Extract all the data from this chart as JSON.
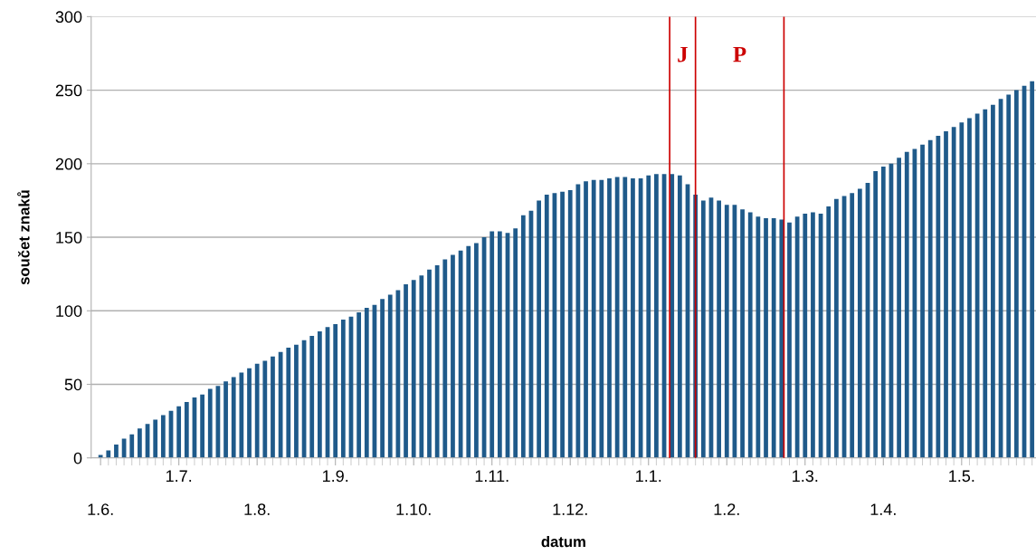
{
  "chart_data": {
    "type": "bar",
    "xlabel": "datum",
    "ylabel": "součet znaků",
    "color": "#1f5a8a",
    "grid": "y",
    "legend": false,
    "categories": [
      "1.6.",
      null,
      null,
      null,
      null,
      null,
      null,
      null,
      null,
      null,
      "1.7.",
      null,
      null,
      null,
      null,
      null,
      null,
      null,
      null,
      null,
      "1.8.",
      null,
      null,
      null,
      null,
      null,
      null,
      null,
      null,
      null,
      "1.9.",
      null,
      null,
      null,
      null,
      null,
      null,
      null,
      null,
      null,
      "1.10.",
      null,
      null,
      null,
      null,
      null,
      null,
      null,
      null,
      null,
      "1.11.",
      null,
      null,
      null,
      null,
      null,
      null,
      null,
      null,
      null,
      "1.12.",
      null,
      null,
      null,
      null,
      null,
      null,
      null,
      null,
      null,
      "1.1.",
      null,
      null,
      null,
      null,
      null,
      null,
      null,
      null,
      null,
      "1.2.",
      null,
      null,
      null,
      null,
      null,
      null,
      null,
      null,
      null,
      "1.3.",
      null,
      null,
      null,
      null,
      null,
      null,
      null,
      null,
      null,
      "1.4.",
      null,
      null,
      null,
      null,
      null,
      null,
      null,
      null,
      null,
      "1.5.",
      null,
      null,
      null,
      null,
      null,
      null,
      null,
      null,
      null
    ],
    "values": [
      2,
      5,
      9,
      13,
      16,
      20,
      23,
      26,
      29,
      32,
      35,
      38,
      41,
      43,
      47,
      49,
      52,
      55,
      58,
      61,
      64,
      66,
      69,
      72,
      75,
      77,
      80,
      83,
      86,
      89,
      91,
      94,
      96,
      99,
      102,
      104,
      108,
      111,
      114,
      118,
      121,
      124,
      128,
      131,
      135,
      138,
      141,
      144,
      146,
      150,
      154,
      154,
      153,
      156,
      165,
      168,
      175,
      179,
      180,
      181,
      182,
      186,
      188,
      189,
      189,
      190,
      191,
      191,
      190,
      190,
      192,
      193,
      193,
      193,
      192,
      186,
      179,
      175,
      177,
      175,
      172,
      172,
      169,
      167,
      164,
      163,
      163,
      162,
      160,
      164,
      166,
      167,
      166,
      171,
      176,
      178,
      180,
      183,
      187,
      195,
      198,
      200,
      204,
      208,
      210,
      213,
      216,
      219,
      222,
      225,
      228,
      231,
      234,
      237,
      240,
      244,
      247,
      250,
      253,
      256
    ],
    "ylim": [
      0,
      300
    ],
    "yticks": [
      0,
      50,
      100,
      150,
      200,
      250,
      300
    ],
    "annotations": [
      "J",
      "P"
    ]
  }
}
